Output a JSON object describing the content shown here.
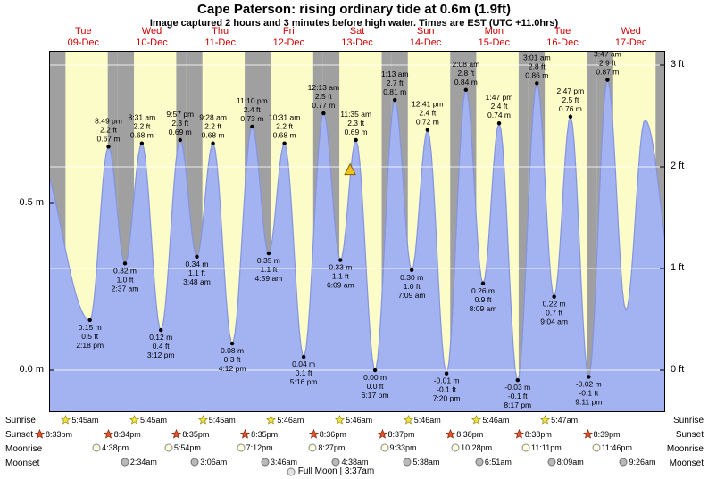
{
  "header": {
    "title": "Cape Paterson: rising  ordinary tide at 0.6m (1.9ft)",
    "subtitle": "Image captured 2 hours and 3 minutes before high water. Times are EST (UTC +11.0hrs)"
  },
  "chart_data": {
    "type": "area",
    "title": "Cape Paterson tide curve, 09-Dec to 17-Dec",
    "x_days": [
      {
        "dow": "Tue",
        "date": "09-Dec"
      },
      {
        "dow": "Wed",
        "date": "10-Dec"
      },
      {
        "dow": "Thu",
        "date": "11-Dec"
      },
      {
        "dow": "Fri",
        "date": "12-Dec"
      },
      {
        "dow": "Sat",
        "date": "13-Dec"
      },
      {
        "dow": "Sun",
        "date": "14-Dec"
      },
      {
        "dow": "Mon",
        "date": "15-Dec"
      },
      {
        "dow": "Tue",
        "date": "16-Dec"
      },
      {
        "dow": "Wed",
        "date": "17-Dec"
      }
    ],
    "y_axis_left": [
      {
        "label": "0.5 m",
        "m": 0.5
      },
      {
        "label": "0.0 m",
        "m": 0.0
      }
    ],
    "y_axis_right": [
      {
        "label": "3 ft"
      },
      {
        "label": "2 ft"
      },
      {
        "label": "1 ft"
      },
      {
        "label": "0 ft"
      }
    ],
    "tide_extremes": [
      {
        "type": "low",
        "day": 0,
        "time": "2:18 pm",
        "ft": "0.5 ft",
        "m": "0.15 m"
      },
      {
        "type": "high",
        "day": 0,
        "time": "8:49 pm",
        "ft": "2.2 ft",
        "m": "0.67 m"
      },
      {
        "type": "low",
        "day": 1,
        "time": "2:37 am",
        "ft": "1.0 ft",
        "m": "0.32 m"
      },
      {
        "type": "high",
        "day": 1,
        "time": "8:31 am",
        "ft": "2.2 ft",
        "m": "0.68 m"
      },
      {
        "type": "low",
        "day": 1,
        "time": "3:12 pm",
        "ft": "0.4 ft",
        "m": "0.12 m"
      },
      {
        "type": "high",
        "day": 1,
        "time": "9:57 pm",
        "ft": "2.3 ft",
        "m": "0.69 m"
      },
      {
        "type": "low",
        "day": 2,
        "time": "3:48 am",
        "ft": "1.1 ft",
        "m": "0.34 m"
      },
      {
        "type": "high",
        "day": 2,
        "time": "9:28 am",
        "ft": "2.2 ft",
        "m": "0.68 m"
      },
      {
        "type": "low",
        "day": 2,
        "time": "4:12 pm",
        "ft": "0.3 ft",
        "m": "0.08 m"
      },
      {
        "type": "high",
        "day": 2,
        "time": "11:10 pm",
        "ft": "2.4 ft",
        "m": "0.73 m"
      },
      {
        "type": "low",
        "day": 3,
        "time": "4:59 am",
        "ft": "1.1 ft",
        "m": "0.35 m"
      },
      {
        "type": "high",
        "day": 3,
        "time": "10:31 am",
        "ft": "2.2 ft",
        "m": "0.68 m"
      },
      {
        "type": "low",
        "day": 3,
        "time": "5:16 pm",
        "ft": "0.1 ft",
        "m": "0.04 m"
      },
      {
        "type": "high",
        "day": 4,
        "time": "12:13 am",
        "ft": "2.5 ft",
        "m": "0.77 m"
      },
      {
        "type": "low",
        "day": 4,
        "time": "6:09 am",
        "ft": "1.1 ft",
        "m": "0.33 m"
      },
      {
        "type": "high",
        "day": 4,
        "time": "11:35 am",
        "ft": "2.3 ft",
        "m": "0.69 m"
      },
      {
        "type": "low",
        "day": 4,
        "time": "6:17 pm",
        "ft": "0.0 ft",
        "m": "0.00 m"
      },
      {
        "type": "high",
        "day": 5,
        "time": "1:13 am",
        "ft": "2.7 ft",
        "m": "0.81 m"
      },
      {
        "type": "low",
        "day": 5,
        "time": "7:09 am",
        "ft": "1.0 ft",
        "m": "0.30 m"
      },
      {
        "type": "high",
        "day": 5,
        "time": "12:41 pm",
        "ft": "2.4 ft",
        "m": "0.72 m"
      },
      {
        "type": "low",
        "day": 5,
        "time": "7:20 pm",
        "ft": "-0.1 ft",
        "m": "-0.01 m"
      },
      {
        "type": "high",
        "day": 6,
        "time": "2:08 am",
        "ft": "2.8 ft",
        "m": "0.84 m"
      },
      {
        "type": "low",
        "day": 6,
        "time": "8:09 am",
        "ft": "0.9 ft",
        "m": "0.26 m"
      },
      {
        "type": "high",
        "day": 6,
        "time": "1:47 pm",
        "ft": "2.4 ft",
        "m": "0.74 m"
      },
      {
        "type": "low",
        "day": 6,
        "time": "8:17 pm",
        "ft": "-0.1 ft",
        "m": "-0.03 m"
      },
      {
        "type": "high",
        "day": 7,
        "time": "3:01 am",
        "ft": "2.8 ft",
        "m": "0.86 m"
      },
      {
        "type": "low",
        "day": 7,
        "time": "9:04 am",
        "ft": "0.7 ft",
        "m": "0.22 m"
      },
      {
        "type": "high",
        "day": 7,
        "time": "2:47 pm",
        "ft": "2.5 ft",
        "m": "0.76 m"
      },
      {
        "type": "low",
        "day": 7,
        "time": "9:11 pm",
        "ft": "-0.1 ft",
        "m": "-0.02 m"
      },
      {
        "type": "high",
        "day": 8,
        "time": "3:47 am",
        "ft": "2.9 ft",
        "m": "0.87 m"
      }
    ],
    "edge_anchors": [
      {
        "day": -1,
        "time": "7:05 pm",
        "m": "0.66 m"
      },
      {
        "day": 8,
        "time": "10:15 am",
        "m": "0.18 m"
      },
      {
        "day": 8,
        "time": "4:55 pm",
        "m": "0.75 m"
      },
      {
        "day": 9,
        "time": "4:30 am",
        "m": "0.20 m"
      }
    ],
    "current_marker": {
      "day": 4,
      "time": "9:32 am",
      "m": "0.60 m",
      "symbol": "triangle",
      "color": "#f2c21c",
      "edge": "#7a6000"
    },
    "colors": {
      "day_band": "#fcfcc8",
      "night_band": "#a0a0a0",
      "tide_fill": "#a3b2f0",
      "tide_stroke": "#8494e0",
      "day_label": "#cc0000",
      "grid": "rgba(255,255,255,0.8)"
    }
  },
  "astro": {
    "rows": [
      {
        "name": "Sunrise",
        "icon": "sunrise-star-icon",
        "shape": "star",
        "icon_color": "#f5e13d",
        "icon_stroke": "#8a8a20",
        "start_day": 0,
        "times": [
          "5:45am",
          "5:45am",
          "5:45am",
          "5:46am",
          "5:46am",
          "5:46am",
          "5:46am",
          "5:47am"
        ]
      },
      {
        "name": "Sunset",
        "icon": "sunset-star-icon",
        "shape": "star",
        "icon_color": "#e8542a",
        "icon_stroke": "#7a1f08",
        "start_day": -1,
        "times": [
          "8:33pm",
          "8:34pm",
          "8:35pm",
          "8:35pm",
          "8:36pm",
          "8:37pm",
          "8:38pm",
          "8:38pm",
          "8:39pm"
        ]
      },
      {
        "name": "Moonrise",
        "icon": "moonrise-circle-icon",
        "shape": "circle",
        "icon_color": "#ffffdf",
        "icon_stroke": "#8a8a8a",
        "start_day": 0,
        "times": [
          "4:38pm",
          "5:54pm",
          "7:12pm",
          "8:27pm",
          "9:33pm",
          "10:28pm",
          "11:11pm",
          "11:46pm"
        ]
      },
      {
        "name": "Moonset",
        "icon": "moonset-circle-icon",
        "shape": "circle",
        "icon_color": "#b9b9b9",
        "icon_stroke": "#6e6e6e",
        "start_day": 1,
        "times": [
          "2:34am",
          "3:06am",
          "3:46am",
          "4:38am",
          "5:38am",
          "6:51am",
          "8:09am",
          "9:26am"
        ]
      }
    ],
    "full_moon": "Full Moon | 3:37am"
  }
}
